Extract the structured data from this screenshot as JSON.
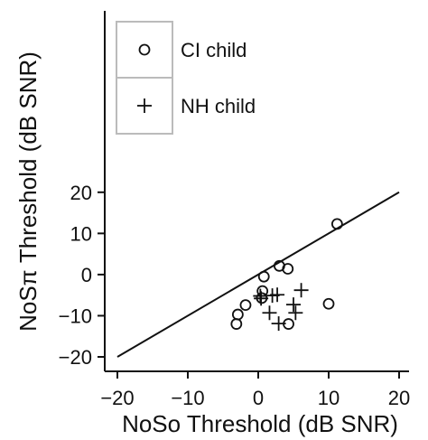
{
  "chart_data": {
    "type": "scatter",
    "xlabel": "NoSo Threshold (dB SNR)",
    "ylabel": "NoSπ Threshold (dB SNR)",
    "xlim": [
      -20,
      20
    ],
    "ylim": [
      -20,
      20
    ],
    "xticks": [
      "−20",
      "−10",
      "0",
      "10",
      "20"
    ],
    "yticks": [
      "−20",
      "−10",
      "0",
      "10",
      "20"
    ],
    "grid": false,
    "legend_position": "top-left",
    "reference_line": {
      "from": [
        -20,
        -20
      ],
      "to": [
        20,
        20
      ]
    },
    "series": [
      {
        "name": "CI child",
        "marker": "circle",
        "points": [
          [
            11.2,
            12.3
          ],
          [
            3.0,
            2.1
          ],
          [
            4.2,
            1.4
          ],
          [
            0.8,
            -0.5
          ],
          [
            0.6,
            -4.0
          ],
          [
            0.5,
            -5.7
          ],
          [
            -1.8,
            -7.4
          ],
          [
            -2.9,
            -9.7
          ],
          [
            -3.1,
            -12.0
          ],
          [
            4.3,
            -12.0
          ],
          [
            10.0,
            -7.1
          ]
        ]
      },
      {
        "name": "NH child",
        "marker": "plus",
        "points": [
          [
            6.1,
            -3.8
          ],
          [
            2.7,
            -4.9
          ],
          [
            2.0,
            -5.1
          ],
          [
            0.3,
            -5.2
          ],
          [
            0.4,
            -5.8
          ],
          [
            5.0,
            -7.3
          ],
          [
            1.6,
            -9.3
          ],
          [
            5.3,
            -9.3
          ],
          [
            2.9,
            -11.9
          ]
        ]
      }
    ]
  }
}
